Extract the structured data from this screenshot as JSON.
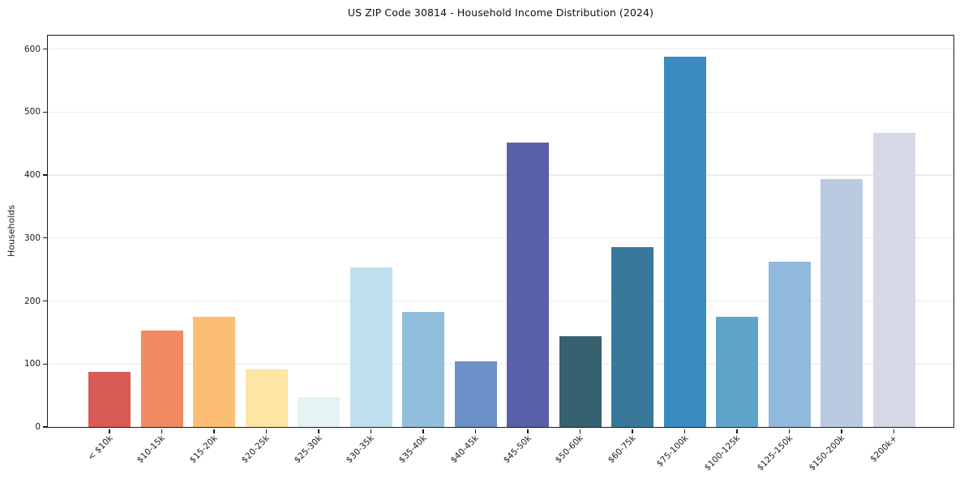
{
  "figure": {
    "background": "#ffffff",
    "axis_spine_color": "#1b1b1b",
    "gridline_color": "#e9e9e9",
    "text_color": "#1a1a1a"
  },
  "chart_data": {
    "type": "bar",
    "title": "US ZIP Code 30814 - Household Income Distribution (2024)",
    "xlabel": "",
    "ylabel": "Households",
    "categories": [
      "< $10k",
      "$10-15k",
      "$15-20k",
      "$20-25k",
      "$25-30k",
      "$30-35k",
      "$35-40k",
      "$40-45k",
      "$45-50k",
      "$50-60k",
      "$60-75k",
      "$75-100k",
      "$100-125k",
      "$125-150k",
      "$150-200k",
      "$200k+"
    ],
    "values": [
      87,
      153,
      175,
      91,
      47,
      253,
      183,
      104,
      452,
      144,
      285,
      588,
      175,
      262,
      394,
      467
    ],
    "bar_colors": [
      "#d85c55",
      "#f18a62",
      "#fcbd74",
      "#fde5a3",
      "#e6f3f5",
      "#c0dfec",
      "#90bedb",
      "#6c90c8",
      "#5a5fa9",
      "#386170",
      "#37789b",
      "#3a8cc0",
      "#5fa5ca",
      "#90b9dc",
      "#b9cbe0",
      "#d8d9e6"
    ],
    "yticks": [
      0,
      100,
      200,
      300,
      400,
      500,
      600
    ],
    "ylim": [
      0,
      620
    ],
    "grid": true,
    "legend_position": "none"
  }
}
